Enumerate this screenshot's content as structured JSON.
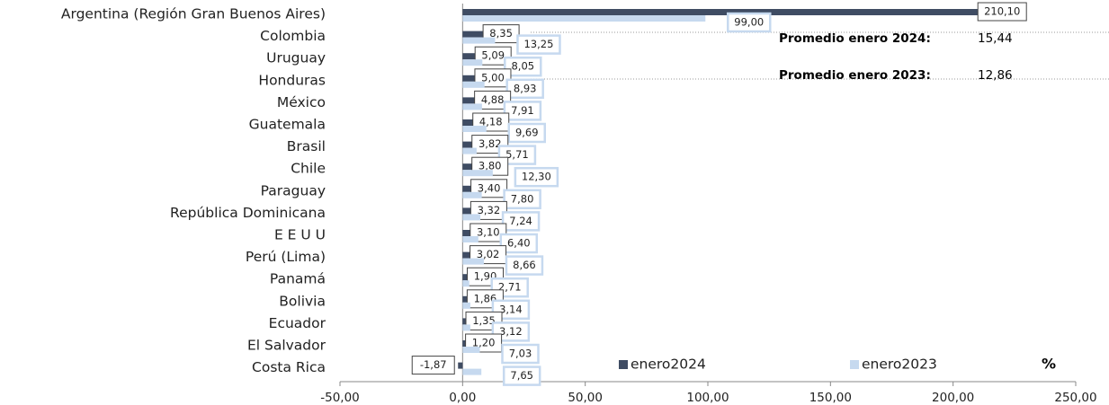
{
  "chart_data": {
    "type": "bar",
    "orientation": "horizontal",
    "categories": [
      "Argentina (Región Gran Buenos Aires)",
      "Colombia",
      "Uruguay",
      "Honduras",
      "México",
      "Guatemala",
      "Brasil",
      "Chile",
      "Paraguay",
      "República Dominicana",
      "E E U U",
      "Perú (Lima)",
      "Panamá",
      "Bolivia",
      "Ecuador",
      "El Salvador",
      "Costa Rica"
    ],
    "series": [
      {
        "name": "enero2024",
        "color": "#3f4c63",
        "values": [
          210.1,
          8.35,
          5.09,
          5.0,
          4.88,
          4.18,
          3.82,
          3.8,
          3.4,
          3.32,
          3.1,
          3.02,
          1.9,
          1.86,
          1.35,
          1.2,
          -1.87
        ],
        "value_labels": [
          "210,10",
          "8,35",
          "5,09",
          "5,00",
          "4,88",
          "4,18",
          "3,82",
          "3,80",
          "3,40",
          "3,32",
          "3,10",
          "3,02",
          "1,90",
          "1,86",
          "1,35",
          "1,20",
          "-1,87"
        ]
      },
      {
        "name": "enero2023",
        "color": "#c6d9ef",
        "values": [
          99.0,
          13.25,
          8.05,
          8.93,
          7.91,
          9.69,
          5.71,
          12.3,
          7.8,
          7.24,
          6.4,
          8.66,
          2.71,
          3.14,
          3.12,
          7.03,
          7.65
        ],
        "value_labels": [
          "99,00",
          "13,25",
          "8,05",
          "8,93",
          "7,91",
          "9,69",
          "5,71",
          "12,30",
          "7,80",
          "7,24",
          "6,40",
          "8,66",
          "2,71",
          "3,14",
          "3,12",
          "7,03",
          "7,65"
        ]
      }
    ],
    "xlim": [
      -50,
      250
    ],
    "xticks": [
      {
        "value": -50,
        "label": "-50,00"
      },
      {
        "value": 0,
        "label": "0,00"
      },
      {
        "value": 50,
        "label": "50,00"
      },
      {
        "value": 100,
        "label": "100,00"
      },
      {
        "value": 150,
        "label": "150,00"
      },
      {
        "value": 200,
        "label": "200,00"
      },
      {
        "value": 250,
        "label": "250,00"
      }
    ],
    "annotations": [
      {
        "label": "Promedio enero 2024:",
        "value": "15,44"
      },
      {
        "label": "Promedio enero 2023:",
        "value": "12,86"
      },
      {
        "label": "%"
      }
    ]
  }
}
